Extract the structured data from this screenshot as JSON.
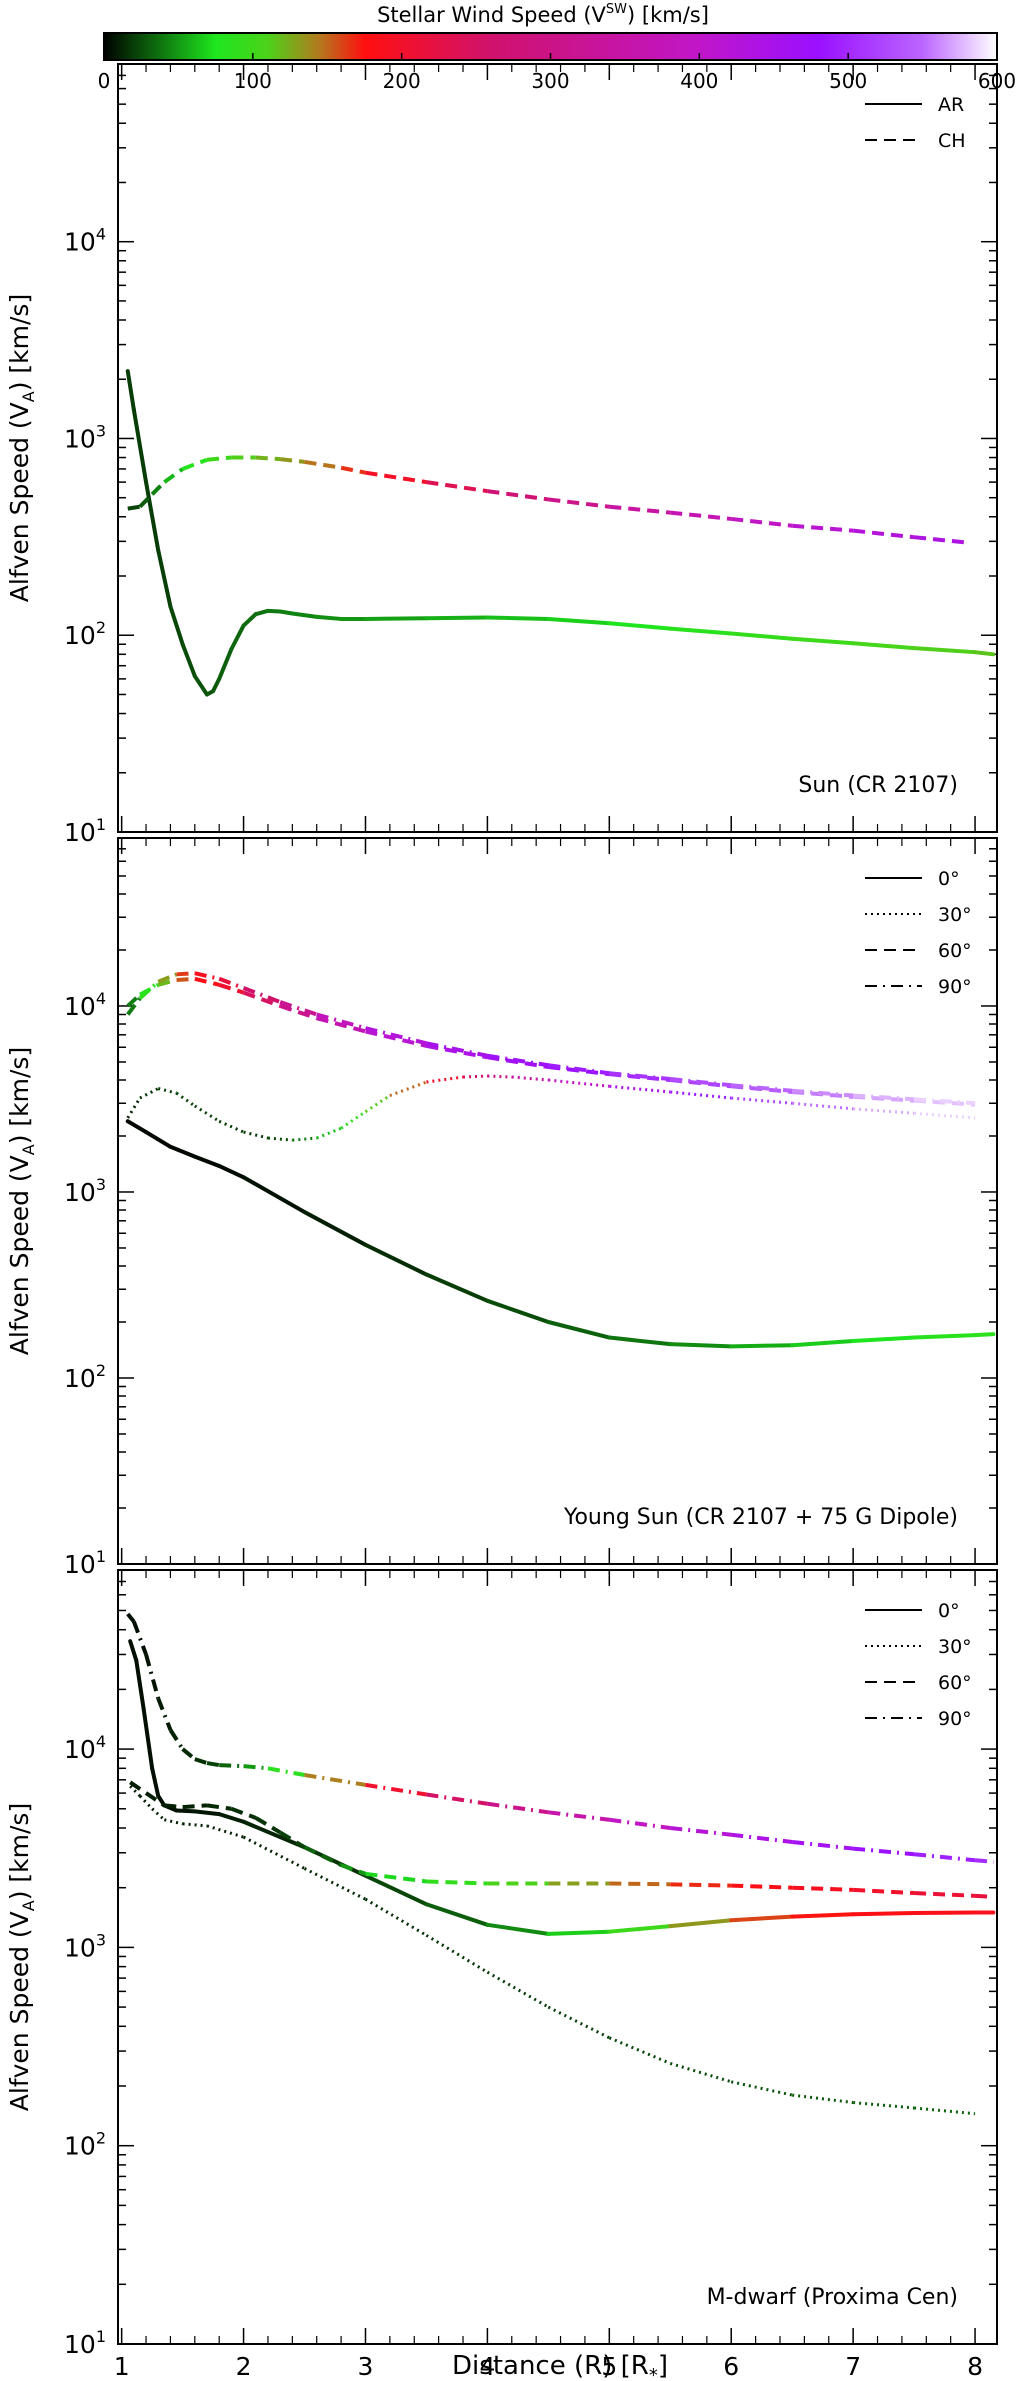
{
  "colorbar": {
    "title_prefix": "Stellar Wind Speed (V",
    "title_sup": "SW",
    "title_suffix": ") [km/s]",
    "ticks": [
      0,
      100,
      200,
      300,
      400,
      500,
      600
    ],
    "stops": [
      {
        "v": 0,
        "color": "#000000"
      },
      {
        "v": 75,
        "color": "#1ee61e"
      },
      {
        "v": 110,
        "color": "#4cd21a"
      },
      {
        "v": 145,
        "color": "#b4781e"
      },
      {
        "v": 175,
        "color": "#ff1010"
      },
      {
        "v": 260,
        "color": "#d0126c"
      },
      {
        "v": 400,
        "color": "#c016c8"
      },
      {
        "v": 480,
        "color": "#9a10ff"
      },
      {
        "v": 550,
        "color": "#bb66ff"
      },
      {
        "v": 600,
        "color": "#ffffff"
      }
    ]
  },
  "chart_data": [
    {
      "type": "line",
      "panel_label": "Sun (CR 2107)",
      "ylabel": "Alfven Speed (V_A) [km/s]",
      "xlabel": "",
      "xlim": [
        0.97,
        8.18
      ],
      "ylim": [
        10,
        80000
      ],
      "yscale": "log",
      "legend": "top-right",
      "legend_entries": [
        {
          "label": "AR",
          "style": "solid"
        },
        {
          "label": "CH",
          "style": "dashed"
        }
      ],
      "series": [
        {
          "name": "AR",
          "style": "solid",
          "color_by": "wind_speed",
          "x": [
            1.05,
            1.1,
            1.2,
            1.3,
            1.4,
            1.5,
            1.6,
            1.7,
            1.75,
            1.8,
            1.9,
            2.0,
            2.1,
            2.2,
            2.3,
            2.4,
            2.6,
            2.8,
            3.0,
            3.5,
            4.0,
            4.5,
            5.0,
            5.5,
            6.0,
            6.5,
            7.0,
            7.5,
            8.0,
            8.15
          ],
          "y": [
            2200,
            1400,
            600,
            270,
            140,
            90,
            62,
            50,
            52,
            60,
            85,
            112,
            128,
            133,
            132,
            129,
            124,
            121,
            121,
            122,
            123,
            121,
            115,
            108,
            102,
            96,
            91,
            86,
            82,
            80
          ],
          "speed": [
            20,
            20,
            20,
            20,
            22,
            24,
            26,
            28,
            28,
            30,
            32,
            34,
            36,
            38,
            40,
            42,
            45,
            48,
            50,
            55,
            60,
            65,
            72,
            80,
            88,
            95,
            102,
            108,
            114,
            116
          ]
        },
        {
          "name": "CH",
          "style": "dashed",
          "color_by": "wind_speed",
          "x": [
            1.05,
            1.15,
            1.25,
            1.35,
            1.5,
            1.7,
            1.9,
            2.1,
            2.3,
            2.5,
            2.8,
            3.0,
            3.5,
            4.0,
            4.5,
            5.0,
            5.5,
            6.0,
            6.5,
            7.0,
            7.5,
            7.95
          ],
          "y": [
            440,
            450,
            520,
            600,
            700,
            780,
            800,
            800,
            785,
            760,
            710,
            670,
            600,
            540,
            490,
            450,
            420,
            390,
            360,
            340,
            315,
            295
          ],
          "speed": [
            20,
            25,
            35,
            50,
            70,
            90,
            105,
            118,
            128,
            138,
            155,
            175,
            215,
            255,
            290,
            325,
            355,
            380,
            405,
            420,
            432,
            440
          ]
        }
      ]
    },
    {
      "type": "line",
      "panel_label": "Young Sun (CR 2107 + 75 G Dipole)",
      "ylabel": "Alfven Speed (V_A) [km/s]",
      "xlabel": "",
      "xlim": [
        0.97,
        8.18
      ],
      "ylim": [
        10,
        80000
      ],
      "yscale": "log",
      "legend": "top-right",
      "legend_entries": [
        {
          "label": "0°",
          "style": "solid"
        },
        {
          "label": "30°",
          "style": "dotted"
        },
        {
          "label": "60°",
          "style": "dashed"
        },
        {
          "label": "90°",
          "style": "dashdot"
        }
      ],
      "series": [
        {
          "name": "0°",
          "style": "solid",
          "color_by": "wind_speed",
          "x": [
            1.05,
            1.2,
            1.4,
            1.6,
            1.8,
            2.0,
            2.5,
            3.0,
            3.5,
            4.0,
            4.5,
            5.0,
            5.5,
            6.0,
            6.5,
            7.0,
            7.5,
            8.0,
            8.15
          ],
          "y": [
            2400,
            2100,
            1750,
            1550,
            1380,
            1200,
            780,
            520,
            360,
            260,
            200,
            165,
            152,
            148,
            150,
            158,
            165,
            170,
            172
          ],
          "speed": [
            2,
            2,
            2,
            3,
            3,
            4,
            8,
            12,
            18,
            22,
            28,
            35,
            42,
            50,
            62,
            72,
            80,
            85,
            86
          ]
        },
        {
          "name": "30°",
          "style": "dotted",
          "color_by": "wind_speed",
          "x": [
            1.05,
            1.15,
            1.3,
            1.45,
            1.6,
            1.8,
            2.0,
            2.2,
            2.4,
            2.6,
            2.8,
            3.0,
            3.2,
            3.5,
            3.8,
            4.0,
            4.2,
            4.5,
            5.0,
            5.5,
            6.0,
            6.5,
            7.0,
            7.5,
            8.0
          ],
          "y": [
            2500,
            3200,
            3600,
            3400,
            2900,
            2400,
            2100,
            1950,
            1900,
            1950,
            2200,
            2700,
            3300,
            3900,
            4150,
            4200,
            4150,
            4000,
            3700,
            3450,
            3200,
            3000,
            2800,
            2650,
            2500
          ],
          "speed": [
            10,
            15,
            20,
            22,
            22,
            20,
            18,
            20,
            30,
            50,
            75,
            95,
            130,
            170,
            230,
            280,
            320,
            370,
            420,
            470,
            510,
            540,
            565,
            580,
            590
          ]
        },
        {
          "name": "60°",
          "style": "dashed",
          "color_by": "wind_speed",
          "x": [
            1.05,
            1.15,
            1.3,
            1.45,
            1.6,
            1.8,
            2.0,
            2.3,
            2.6,
            3.0,
            3.5,
            4.0,
            4.5,
            5.0,
            5.5,
            6.0,
            6.5,
            7.0,
            7.5,
            8.0
          ],
          "y": [
            10000,
            11500,
            13000,
            13800,
            14000,
            13000,
            11800,
            10000,
            8600,
            7300,
            6100,
            5300,
            4700,
            4300,
            4000,
            3700,
            3450,
            3250,
            3100,
            2950
          ],
          "speed": [
            20,
            60,
            100,
            140,
            170,
            190,
            220,
            280,
            340,
            400,
            430,
            450,
            470,
            490,
            510,
            530,
            550,
            565,
            575,
            585
          ]
        },
        {
          "name": "90°",
          "style": "dashdot",
          "color_by": "wind_speed",
          "x": [
            1.05,
            1.15,
            1.3,
            1.45,
            1.6,
            1.8,
            2.0,
            2.3,
            2.6,
            3.0,
            3.5,
            4.0,
            4.5,
            5.0,
            5.5,
            6.0,
            6.5,
            7.0,
            7.5,
            8.0
          ],
          "y": [
            9000,
            11000,
            13500,
            14800,
            15000,
            14000,
            12500,
            10500,
            9000,
            7600,
            6300,
            5400,
            4800,
            4350,
            4050,
            3750,
            3500,
            3300,
            3150,
            3000
          ],
          "speed": [
            20,
            60,
            110,
            150,
            175,
            200,
            230,
            290,
            350,
            410,
            440,
            460,
            480,
            500,
            520,
            540,
            555,
            570,
            580,
            590
          ]
        }
      ]
    },
    {
      "type": "line",
      "panel_label": "M-dwarf (Proxima Cen)",
      "ylabel": "Alfven Speed (V_A) [km/s]",
      "xlabel": "Distance (R) [R_*]",
      "xlim": [
        0.97,
        8.18
      ],
      "ylim": [
        10,
        80000
      ],
      "yscale": "log",
      "legend": "top-right",
      "legend_entries": [
        {
          "label": "0°",
          "style": "solid"
        },
        {
          "label": "30°",
          "style": "dotted"
        },
        {
          "label": "60°",
          "style": "dashed"
        },
        {
          "label": "90°",
          "style": "dashdot"
        }
      ],
      "series": [
        {
          "name": "0°",
          "style": "solid",
          "color_by": "wind_speed",
          "x": [
            1.07,
            1.12,
            1.18,
            1.25,
            1.3,
            1.35,
            1.45,
            1.6,
            1.8,
            2.0,
            2.5,
            3.0,
            3.5,
            4.0,
            4.5,
            5.0,
            5.5,
            6.0,
            6.5,
            7.0,
            7.5,
            8.0,
            8.15
          ],
          "y": [
            35000,
            28000,
            16000,
            8000,
            5800,
            5200,
            4900,
            4850,
            4700,
            4300,
            3200,
            2300,
            1650,
            1300,
            1170,
            1200,
            1280,
            1370,
            1430,
            1470,
            1490,
            1500,
            1500
          ],
          "speed": [
            5,
            5,
            5,
            5,
            5,
            5,
            5,
            6,
            8,
            10,
            14,
            20,
            26,
            35,
            55,
            80,
            115,
            150,
            170,
            178,
            182,
            185,
            186
          ]
        },
        {
          "name": "30°",
          "style": "dotted",
          "color_by": "wind_speed",
          "x": [
            1.07,
            1.15,
            1.25,
            1.35,
            1.5,
            1.7,
            2.0,
            2.5,
            3.0,
            3.5,
            4.0,
            4.5,
            5.0,
            5.5,
            6.0,
            6.5,
            7.0,
            7.5,
            8.0
          ],
          "y": [
            6500,
            5800,
            5000,
            4400,
            4200,
            4100,
            3600,
            2500,
            1750,
            1150,
            750,
            500,
            350,
            260,
            210,
            180,
            165,
            155,
            145
          ],
          "speed": [
            10,
            10,
            10,
            10,
            10,
            10,
            10,
            12,
            14,
            16,
            18,
            20,
            22,
            24,
            26,
            28,
            30,
            32,
            34
          ]
        },
        {
          "name": "60°",
          "style": "dashed",
          "color_by": "wind_speed",
          "x": [
            1.07,
            1.2,
            1.35,
            1.5,
            1.7,
            1.9,
            2.1,
            2.3,
            2.5,
            2.8,
            3.0,
            3.5,
            4.0,
            4.5,
            5.0,
            5.5,
            6.0,
            6.5,
            7.0,
            7.5,
            8.0,
            8.15
          ],
          "y": [
            6800,
            6000,
            5200,
            5100,
            5200,
            5000,
            4500,
            3800,
            3200,
            2600,
            2350,
            2150,
            2100,
            2100,
            2100,
            2080,
            2050,
            2000,
            1950,
            1880,
            1820,
            1800
          ],
          "speed": [
            10,
            10,
            10,
            10,
            12,
            14,
            16,
            18,
            25,
            40,
            60,
            80,
            100,
            120,
            140,
            160,
            175,
            185,
            195,
            205,
            215,
            218
          ]
        },
        {
          "name": "90°",
          "style": "dashdot",
          "color_by": "wind_speed",
          "x": [
            1.05,
            1.1,
            1.2,
            1.3,
            1.4,
            1.5,
            1.6,
            1.7,
            1.8,
            2.0,
            2.2,
            2.5,
            3.0,
            3.5,
            4.0,
            4.5,
            5.0,
            5.5,
            6.0,
            6.5,
            7.0,
            7.5,
            8.0,
            8.15
          ],
          "y": [
            48000,
            44000,
            30000,
            18000,
            12500,
            10000,
            8900,
            8500,
            8300,
            8200,
            8000,
            7400,
            6600,
            5900,
            5300,
            4800,
            4400,
            4000,
            3700,
            3400,
            3150,
            2950,
            2750,
            2700
          ],
          "speed": [
            5,
            5,
            5,
            8,
            10,
            12,
            14,
            18,
            25,
            40,
            60,
            110,
            175,
            230,
            280,
            330,
            380,
            410,
            430,
            450,
            470,
            485,
            500,
            505
          ]
        }
      ]
    }
  ]
}
